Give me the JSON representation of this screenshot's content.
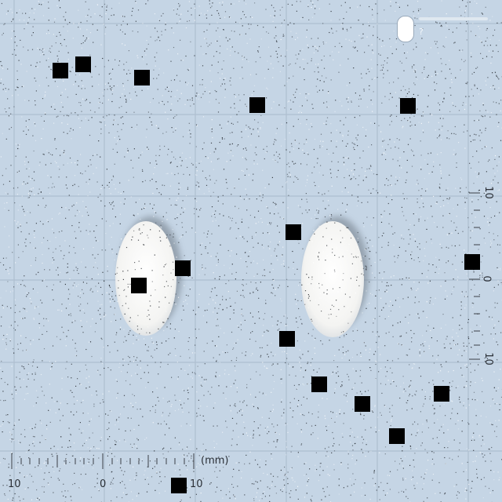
{
  "image": {
    "subject": "two-oval-tablets",
    "colors": {
      "background": "#c5d5e5",
      "grid": "#aebfd0",
      "tablet": "#f7f7f5",
      "tablet_shadow": "#8a96a2",
      "noise": "#1b1f24",
      "occluder": "#000000"
    }
  },
  "scale_bar": {
    "unit": "(mm)",
    "bottom_labels": [
      "10",
      "0",
      "10"
    ],
    "right_labels": [
      "10",
      "0",
      "10"
    ]
  },
  "logo": {
    "text": "?"
  },
  "occluders": 16
}
